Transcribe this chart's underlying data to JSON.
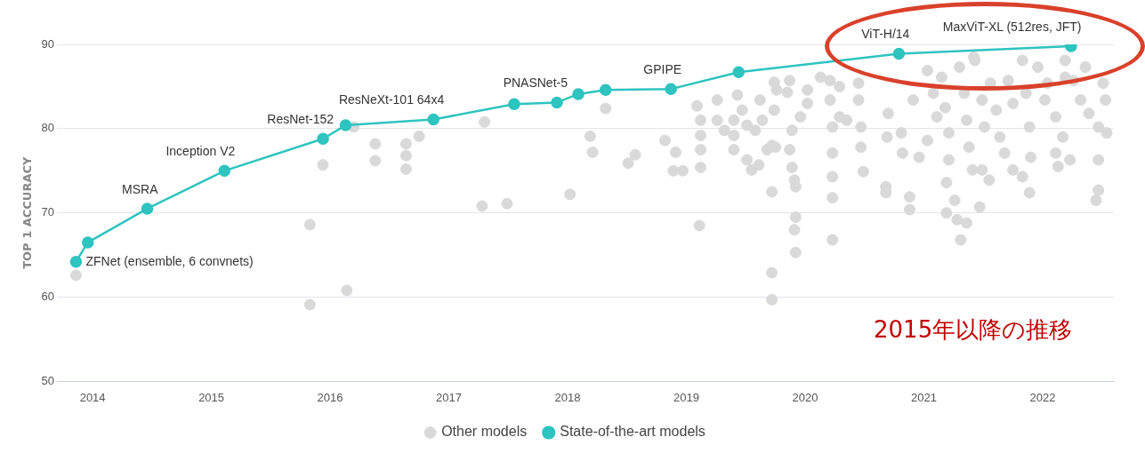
{
  "chart_data": {
    "type": "scatter",
    "ylabel": "TOP 1 ACCURACY",
    "xlim": [
      2013.7,
      2022.6
    ],
    "xticks": [
      2014,
      2015,
      2016,
      2017,
      2018,
      2019,
      2020,
      2021,
      2022
    ],
    "ylim": [
      50,
      90
    ],
    "yticks": [
      50,
      60,
      70,
      80,
      90
    ],
    "grid": "y",
    "legend": "bottom",
    "marker": "circle",
    "series": [
      {
        "name": "Other models",
        "color": "#d9d9d9",
        "x": [
          2013.86,
          2015.83,
          2015.83,
          2015.94,
          2016.14,
          2016.2,
          2016.38,
          2016.38,
          2016.64,
          2016.64,
          2016.64,
          2016.75,
          2017.3,
          2017.28,
          2017.49,
          2018.02,
          2018.19,
          2018.21,
          2018.32,
          2018.51,
          2018.57,
          2018.82,
          2018.91,
          2018.89,
          2018.97,
          2019.11,
          2019.09,
          2019.12,
          2019.12,
          2019.12,
          2019.12,
          2019.26,
          2019.26,
          2019.32,
          2019.4,
          2019.4,
          2019.4,
          2019.43,
          2019.47,
          2019.51,
          2019.51,
          2019.55,
          2019.61,
          2019.58,
          2019.62,
          2019.64,
          2019.68,
          2019.74,
          2019.76,
          2019.72,
          2019.72,
          2019.72,
          2019.72,
          2019.74,
          2019.87,
          2019.85,
          2020.02,
          2020.02,
          2019.96,
          2019.89,
          2019.87,
          2019.89,
          2019.91,
          2019.92,
          2019.92,
          2019.91,
          2019.92,
          2019.75,
          2020.13,
          2020.21,
          2020.21,
          2020.23,
          2020.23,
          2020.23,
          2020.23,
          2020.23,
          2020.29,
          2020.29,
          2020.35,
          2020.45,
          2020.45,
          2020.47,
          2020.47,
          2020.49,
          2020.7,
          2020.69,
          2020.68,
          2020.68,
          2020.81,
          2020.82,
          2020.88,
          2020.88,
          2020.91,
          2021.03,
          2021.08,
          2021.11,
          2021.03,
          2020.96,
          2021.15,
          2021.18,
          2021.21,
          2021.21,
          2021.19,
          2021.19,
          2021.26,
          2021.28,
          2021.31,
          2021.36,
          2021.3,
          2021.34,
          2021.36,
          2021.38,
          2021.41,
          2021.43,
          2021.47,
          2021.49,
          2021.51,
          2021.49,
          2021.55,
          2021.56,
          2021.61,
          2021.64,
          2021.68,
          2021.71,
          2021.75,
          2021.75,
          2021.83,
          2021.83,
          2021.89,
          2021.86,
          2021.89,
          2021.9,
          2021.96,
          2022.02,
          2022.11,
          2022.11,
          2022.13,
          2022.17,
          2022.19,
          2022.23,
          2022.26,
          2022.32,
          2022.36,
          2022.39,
          2022.47,
          2022.47,
          2022.47,
          2022.45,
          2022.51,
          2022.54,
          2022.53,
          2022.19,
          2022.04,
          2021.42
        ],
        "values": [
          62.6,
          68.6,
          59.1,
          75.7,
          60.8,
          80.2,
          78.2,
          76.2,
          78.2,
          76.8,
          75.2,
          79.1,
          80.8,
          70.8,
          71.1,
          72.2,
          79.1,
          77.2,
          82.4,
          75.9,
          76.9,
          78.6,
          77.2,
          75.0,
          75.0,
          68.5,
          82.7,
          81.0,
          79.2,
          77.5,
          75.4,
          83.4,
          81.0,
          79.8,
          81.0,
          79.2,
          77.5,
          84.0,
          82.2,
          80.4,
          76.3,
          75.1,
          75.7,
          79.8,
          83.4,
          81.0,
          77.5,
          82.2,
          84.6,
          62.9,
          59.7,
          72.5,
          78.0,
          85.5,
          85.7,
          84.3,
          84.6,
          83.0,
          81.4,
          79.8,
          77.5,
          75.4,
          73.9,
          73.1,
          69.5,
          68.0,
          65.3,
          77.8,
          86.1,
          85.7,
          83.4,
          80.2,
          77.1,
          74.3,
          71.8,
          66.8,
          85.0,
          81.4,
          81.0,
          85.4,
          83.4,
          80.2,
          77.8,
          74.9,
          81.8,
          79.0,
          73.1,
          72.4,
          79.5,
          77.1,
          71.9,
          70.4,
          83.4,
          86.9,
          84.2,
          81.4,
          78.6,
          76.6,
          86.1,
          82.5,
          79.5,
          76.3,
          73.6,
          70.0,
          71.5,
          69.2,
          66.8,
          68.8,
          87.3,
          84.2,
          81.0,
          77.8,
          75.1,
          88.1,
          70.7,
          83.4,
          80.2,
          75.1,
          73.9,
          85.4,
          82.2,
          79.0,
          77.1,
          85.7,
          83.0,
          75.1,
          88.1,
          74.3,
          72.4,
          84.2,
          80.2,
          76.6,
          87.3,
          83.4,
          81.4,
          77.1,
          75.5,
          79.0,
          88.1,
          76.3,
          85.7,
          83.4,
          87.3,
          81.8,
          80.2,
          76.3,
          72.7,
          71.5,
          85.4,
          79.5,
          83.4,
          86.1,
          85.4,
          88.5
        ]
      },
      {
        "name": "State-of-the-art models",
        "type": "line",
        "color": "#2ec4c0",
        "x": [
          2013.86,
          2013.96,
          2014.46,
          2015.11,
          2015.94,
          2016.13,
          2016.87,
          2017.55,
          2017.91,
          2018.09,
          2018.32,
          2018.87,
          2019.44,
          2020.79,
          2022.24
        ],
        "values": [
          64.2,
          66.5,
          70.5,
          75.0,
          78.8,
          80.4,
          81.1,
          82.9,
          83.1,
          84.1,
          84.6,
          84.7,
          86.7,
          88.9,
          89.8
        ]
      }
    ],
    "annotations": [
      {
        "text": "ZFNet (ensemble, 6 convnets)",
        "x": 2013.86,
        "y": 64.2
      },
      {
        "text": "MSRA",
        "x": 2014.46,
        "y": 70.5
      },
      {
        "text": "Inception V2",
        "x": 2015.11,
        "y": 75.0
      },
      {
        "text": "ResNet-152",
        "x": 2015.94,
        "y": 78.8
      },
      {
        "text": "ResNeXt-101 64x4",
        "x": 2016.87,
        "y": 81.1
      },
      {
        "text": "PNASNet-5",
        "x": 2017.91,
        "y": 83.1
      },
      {
        "text": "GPIPE",
        "x": 2018.87,
        "y": 84.7
      },
      {
        "text": "ViT-H/14",
        "x": 2020.79,
        "y": 88.9
      },
      {
        "text": "MaxViT-XL (512res, JFT)",
        "x": 2022.24,
        "y": 89.8
      },
      "2015年以降の推移"
    ]
  }
}
